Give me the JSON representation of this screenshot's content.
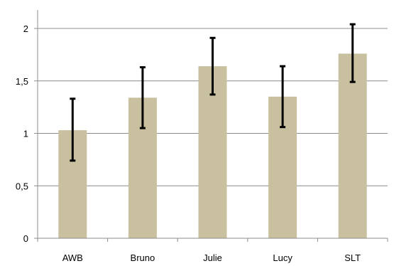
{
  "chart_data": {
    "type": "bar",
    "categories": [
      "AWB",
      "Bruno",
      "Julie",
      "Lucy",
      "SLT"
    ],
    "values": [
      1.03,
      1.34,
      1.64,
      1.35,
      1.76
    ],
    "error_low": [
      0.74,
      1.05,
      1.37,
      1.06,
      1.49
    ],
    "error_high": [
      1.33,
      1.63,
      1.91,
      1.64,
      2.04
    ],
    "ylim": [
      0,
      2.1
    ],
    "yticks": [
      0,
      0.5,
      1,
      1.5,
      2
    ],
    "ytick_labels": [
      "0",
      "0,5",
      "1",
      "1,5",
      "2"
    ],
    "title": "",
    "xlabel": "",
    "ylabel": "",
    "grid": "horizontal",
    "legend": "none",
    "colors": {
      "bar": "#c8c09f",
      "error_bar": "#000000",
      "grid": "#8c8c8c",
      "axis": "#8c8c8c"
    }
  }
}
